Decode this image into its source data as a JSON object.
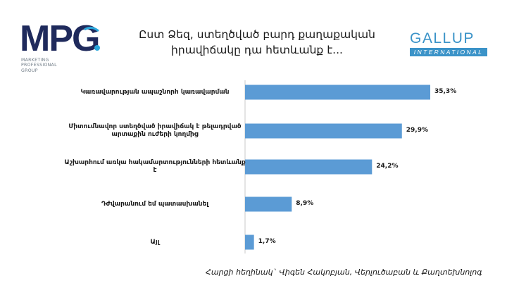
{
  "logos": {
    "mpg": {
      "text": "MPG",
      "sub_lines": [
        "MARKETING",
        "PROFESSIONAL",
        "GROUP"
      ],
      "colors": {
        "dark": "#1f2a5c",
        "accent": "#2aa7dc"
      }
    },
    "gallup": {
      "word": "GALLUP",
      "band": "INTERNATIONAL",
      "color": "#3b93c8"
    }
  },
  "title_lines": [
    "Ըստ Ձեզ, ստեղծված բարդ քաղաքական",
    "իրավիճակը դա հետևանք է..."
  ],
  "footer": "Հարցի հեղինակ` Վիգեն Հակոբյան, Վերլուծաբան և Քաղտեխնոլոգ",
  "chart_data": {
    "type": "bar",
    "orientation": "horizontal",
    "bar_color": "#5b9bd5",
    "categories": [
      "Կառավարության ապաշնորհ կառավարման",
      "Միտումնավոր ստեղծված իրավիճակ է թելադրված արտաքին ուժերի կողմից",
      "Աշխարհում առկա հակամարտությունների հետևանք է",
      "Դժվարանում եմ պատասխանել",
      "Այլ"
    ],
    "values": [
      35.3,
      29.9,
      24.2,
      8.9,
      1.7
    ],
    "value_labels": [
      "35,3%",
      "29,9%",
      "24,2%",
      "8,9%",
      "1,7%"
    ],
    "xlim": [
      0,
      40
    ],
    "grid": false
  }
}
